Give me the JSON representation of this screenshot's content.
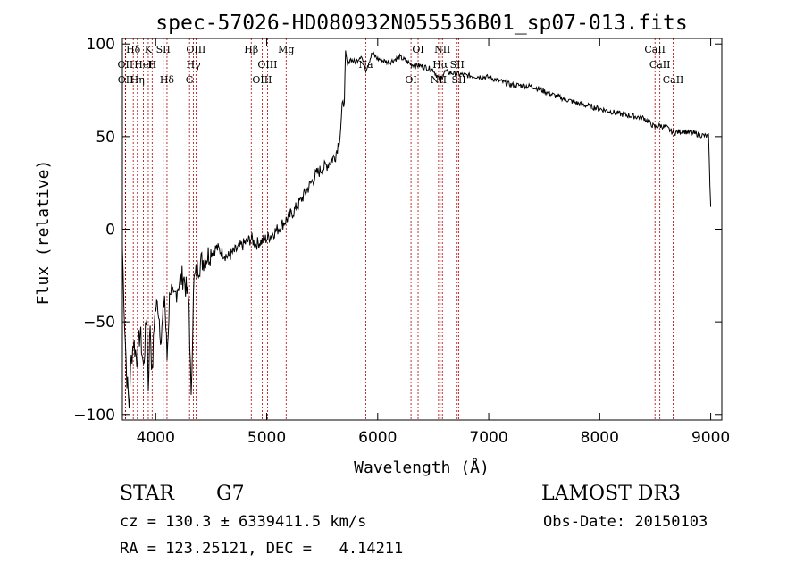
{
  "chart_data": {
    "type": "line",
    "title": "spec-57026-HD080932N055536B01_sp07-013.fits",
    "xlabel": "Wavelength (Å)",
    "ylabel": "Flux (relative)",
    "xlim": [
      3700,
      9100
    ],
    "ylim": [
      -103,
      103
    ],
    "xticks": [
      4000,
      5000,
      6000,
      7000,
      8000,
      9000
    ],
    "yticks": [
      -100,
      -50,
      0,
      50,
      100
    ],
    "grid": false,
    "series": [
      {
        "x": [
          3700,
          3720,
          3740,
          3760,
          3780,
          3800,
          3830,
          3860,
          3890,
          3920,
          3933,
          3950,
          3968,
          3990,
          4020,
          4050,
          4080,
          4102,
          4130,
          4160,
          4200,
          4250,
          4300,
          4320,
          4340,
          4380,
          4450,
          4550,
          4650,
          4750,
          4861,
          4900,
          5000,
          5100,
          5175,
          5250,
          5350,
          5450,
          5550,
          5620,
          5660,
          5680,
          5700,
          5710,
          5730,
          5750,
          5800,
          5850,
          5893,
          5950,
          6000,
          6100,
          6200,
          6300,
          6400,
          6500,
          6563,
          6600,
          6700,
          6800,
          7000,
          7200,
          7400,
          7600,
          7800,
          8000,
          8200,
          8400,
          8498,
          8542,
          8600,
          8662,
          8750,
          8900,
          8980,
          9000
        ],
        "y": [
          -10,
          -50,
          -80,
          -95,
          -70,
          -60,
          -70,
          -55,
          -75,
          -45,
          -85,
          -50,
          -80,
          -45,
          -40,
          -60,
          -35,
          -70,
          -30,
          -40,
          -30,
          -25,
          -40,
          -95,
          -30,
          -20,
          -15,
          -10,
          -15,
          -10,
          -5,
          -8,
          -5,
          0,
          5,
          10,
          20,
          30,
          35,
          40,
          50,
          65,
          70,
          95,
          88,
          92,
          90,
          94,
          86,
          95,
          92,
          90,
          93,
          89,
          88,
          86,
          80,
          85,
          84,
          83,
          82,
          78,
          77,
          72,
          68,
          65,
          62,
          60,
          55,
          56,
          55,
          52,
          53,
          51,
          50,
          12
        ]
      }
    ],
    "lines": [
      {
        "label": "Hδ",
        "x": 3798
      },
      {
        "label": "OII",
        "x": 3727
      },
      {
        "label": "OII",
        "x": 3729
      },
      {
        "label": "K",
        "x": 3933
      },
      {
        "label": "HeI",
        "x": 3889
      },
      {
        "label": "Hη",
        "x": 3835
      },
      {
        "label": "SII",
        "x": 4068
      },
      {
        "label": "H",
        "x": 3968
      },
      {
        "label": "Hδ",
        "x": 4102
      },
      {
        "label": "OIII",
        "x": 4363
      },
      {
        "label": "Hγ",
        "x": 4340
      },
      {
        "label": "G",
        "x": 4305
      },
      {
        "label": "Hβ",
        "x": 4861
      },
      {
        "label": "OIII",
        "x": 5007
      },
      {
        "label": "OIII",
        "x": 4959
      },
      {
        "label": "Mg",
        "x": 5175
      },
      {
        "label": "Na",
        "x": 5893
      },
      {
        "label": "OI",
        "x": 6300
      },
      {
        "label": "OI",
        "x": 6364
      },
      {
        "label": "Hα",
        "x": 6563
      },
      {
        "label": "NII",
        "x": 6548
      },
      {
        "label": "NII",
        "x": 6583
      },
      {
        "label": "SII",
        "x": 6716
      },
      {
        "label": "SII",
        "x": 6731
      },
      {
        "label": "CaII",
        "x": 8498
      },
      {
        "label": "CaII",
        "x": 8542
      },
      {
        "label": "CaII",
        "x": 8662
      }
    ]
  },
  "info": {
    "object_class": "STAR",
    "subclass": "G7",
    "survey": "LAMOST DR3",
    "cz": "cz = 130.3 ± 6339411.5 km/s",
    "obs_date": "Obs-Date: 20150103",
    "radec": "RA = 123.25121, DEC =   4.14211"
  }
}
